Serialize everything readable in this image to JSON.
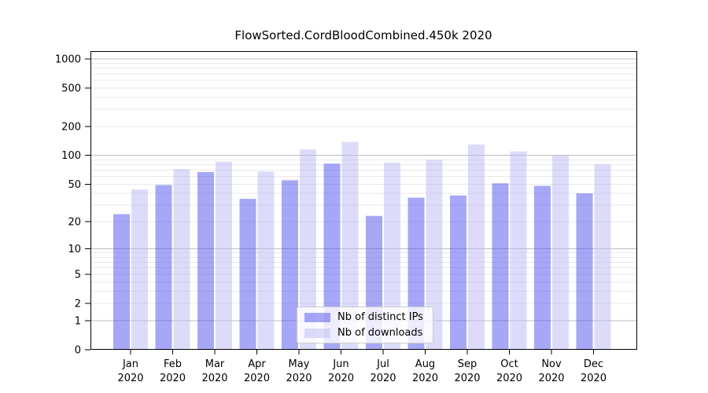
{
  "title": "FlowSorted.CordBloodCombined.450k 2020",
  "legend": {
    "items": [
      {
        "label": "Nb of distinct IPs",
        "key": "ips"
      },
      {
        "label": "Nb of downloads",
        "key": "downloads"
      }
    ]
  },
  "colors": {
    "ips_bar": "rgba(80,80,240,0.5)",
    "downloads_bar": "rgba(185,185,245,0.5)",
    "major_gridline": "#bdbdbd",
    "minor_gridline": "#e9e9e9",
    "spine": "#000000",
    "text": "#000000",
    "legend_border": "#cccccc",
    "background": "#ffffff"
  },
  "y_axis": {
    "tick_labels": [
      "1000",
      "500",
      "200",
      "100",
      "50",
      "20",
      "10",
      "5",
      "2",
      "1",
      "0"
    ],
    "tick_values": [
      1000,
      500,
      200,
      100,
      50,
      20,
      10,
      5,
      2,
      1,
      0
    ]
  },
  "x_axis": {
    "months": [
      "Jan",
      "Feb",
      "Mar",
      "Apr",
      "May",
      "Jun",
      "Jul",
      "Aug",
      "Sep",
      "Oct",
      "Nov",
      "Dec"
    ],
    "year_label": "2020"
  },
  "chart_data": {
    "type": "bar",
    "title": "FlowSorted.CordBloodCombined.450k 2020",
    "categories": [
      "Jan 2020",
      "Feb 2020",
      "Mar 2020",
      "Apr 2020",
      "May 2020",
      "Jun 2020",
      "Jul 2020",
      "Aug 2020",
      "Sep 2020",
      "Oct 2020",
      "Nov 2020",
      "Dec 2020"
    ],
    "series": [
      {
        "name": "Nb of distinct IPs",
        "values": [
          24,
          49,
          67,
          35,
          55,
          82,
          23,
          36,
          38,
          51,
          48,
          40
        ]
      },
      {
        "name": "Nb of downloads",
        "values": [
          44,
          72,
          86,
          68,
          115,
          138,
          84,
          90,
          130,
          110,
          100,
          81
        ]
      }
    ],
    "xlabel": "",
    "ylabel": "",
    "yscale": "log10(1+v)",
    "ylim": [
      0,
      1200
    ],
    "yticks": [
      0,
      1,
      2,
      5,
      10,
      20,
      50,
      100,
      200,
      500,
      1000
    ],
    "grid": "on",
    "legend_position": "lower center inside plot"
  }
}
